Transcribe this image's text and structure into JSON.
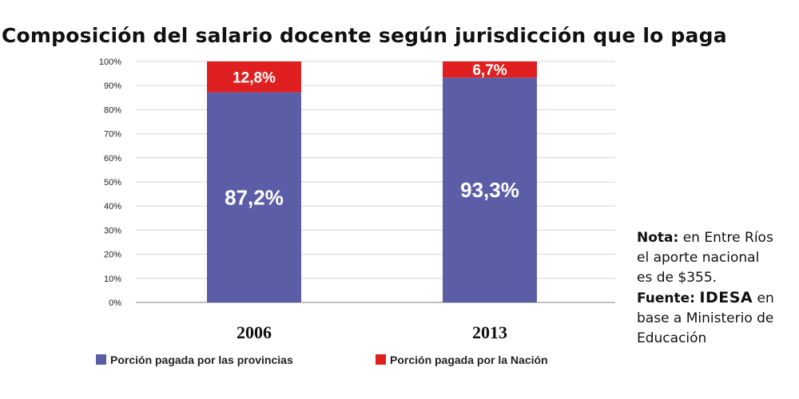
{
  "chart_data": {
    "type": "bar",
    "stacked": true,
    "title": "Composición del salario docente según jurisdicción que lo paga",
    "categories": [
      "2006",
      "2013"
    ],
    "ylim": [
      0,
      100
    ],
    "yticks": [
      "0%",
      "10%",
      "20%",
      "30%",
      "40%",
      "50%",
      "60%",
      "70%",
      "80%",
      "90%",
      "100%"
    ],
    "grid": true,
    "legend_position": "bottom",
    "series": [
      {
        "name": "Porción pagada por las provincias",
        "values": [
          87.2,
          93.3
        ],
        "labels": [
          "87,2%",
          "93,3%"
        ],
        "color": "#5b5ea6"
      },
      {
        "name": "Porción pagada por la Nación",
        "values": [
          12.8,
          6.7
        ],
        "labels": [
          "12,8%",
          "6,7%"
        ],
        "color": "#e02020"
      }
    ]
  },
  "note": {
    "label": "Nota:",
    "text_1": "en Entre Ríos",
    "text_2": "el aporte nacional",
    "text_3": "es de $355.",
    "source_label": "Fuente:",
    "source_org": "IDESA",
    "source_1": "en",
    "source_2": "base a Ministerio de",
    "source_3": "Educación"
  },
  "colors": {
    "gridline": "#d6d6d6",
    "axis": "#9a9a9a"
  }
}
